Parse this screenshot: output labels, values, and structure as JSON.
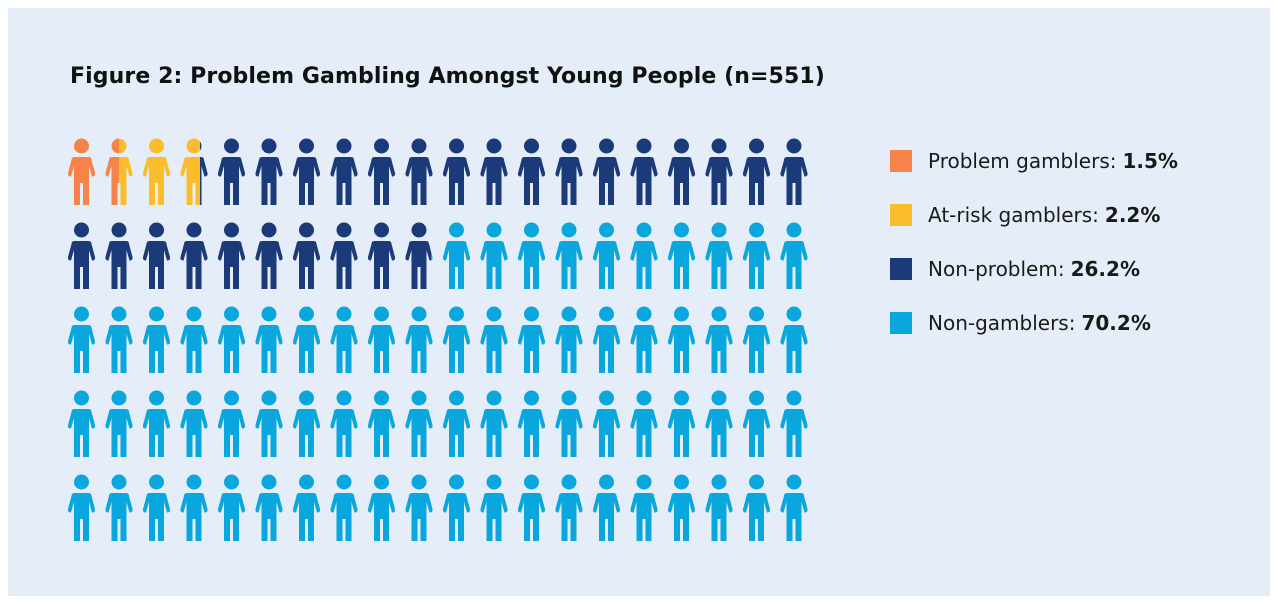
{
  "chart_data": {
    "type": "pictograph",
    "title": "Figure 2: Problem Gambling Amongst Young People (n=551)",
    "total_icons": 100,
    "series": [
      {
        "name": "Problem gamblers",
        "label": "Problem gamblers:",
        "value_text": "1.5%",
        "value": 1.5,
        "color": "#f5834a"
      },
      {
        "name": "At-risk gamblers",
        "label": "At-risk gamblers:",
        "value_text": "2.2%",
        "value": 2.2,
        "color": "#fbbd2c"
      },
      {
        "name": "Non-problem",
        "label": "Non-problem:",
        "value_text": "26.2%",
        "value": 26.2,
        "color": "#1b3a7a"
      },
      {
        "name": "Non-gamblers",
        "label": "Non-gamblers:",
        "value_text": "70.2%",
        "value": 70.2,
        "color": "#0aa6de"
      }
    ],
    "legend_position": "right"
  }
}
